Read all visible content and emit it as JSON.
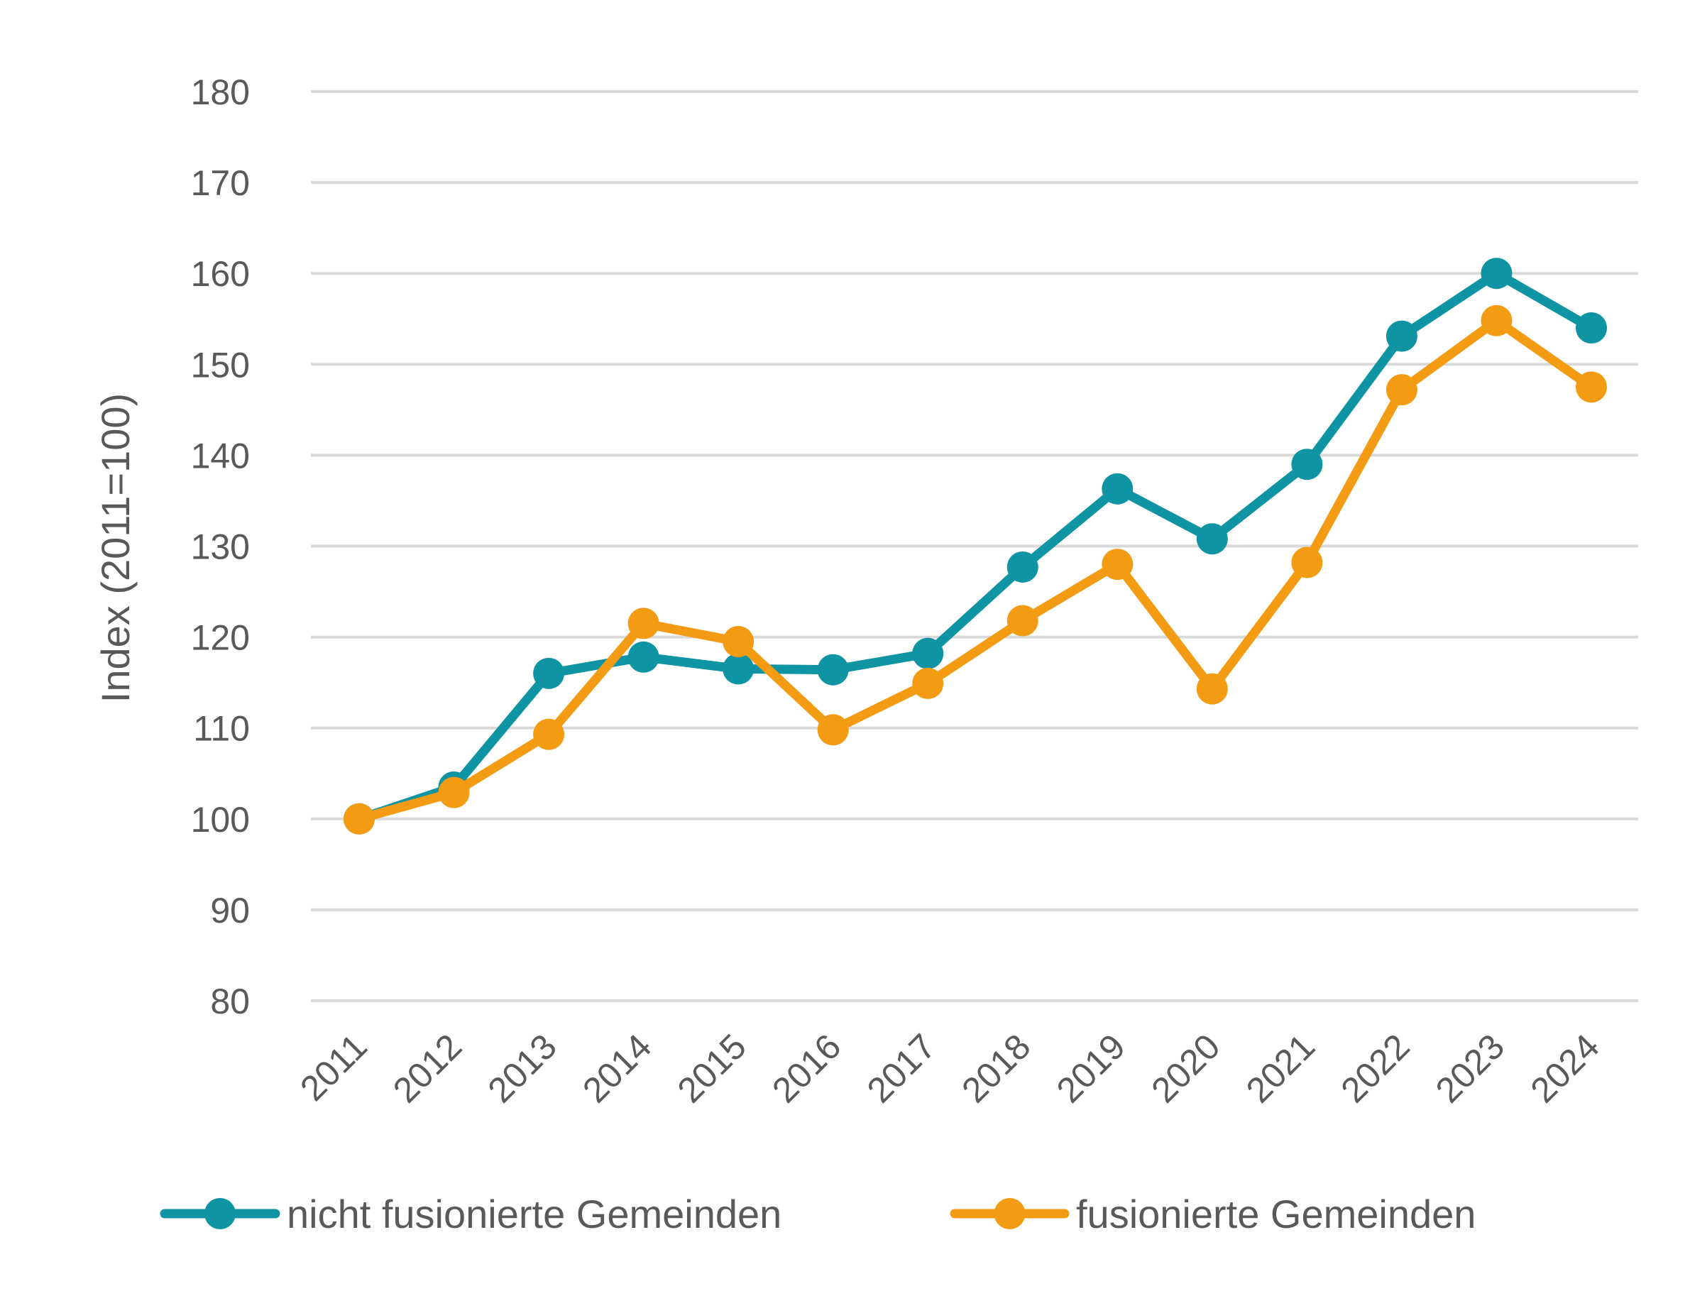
{
  "chart_data": {
    "type": "line",
    "title": "",
    "xlabel": "",
    "ylabel": "Index (2011=100)",
    "ylim": [
      80,
      180
    ],
    "yticks": [
      80,
      90,
      100,
      110,
      120,
      130,
      140,
      150,
      160,
      170,
      180
    ],
    "grid": "horizontal",
    "legend": "bottom",
    "categories": [
      "2011",
      "2012",
      "2013",
      "2014",
      "2015",
      "2016",
      "2017",
      "2018",
      "2019",
      "2020",
      "2021",
      "2022",
      "2023",
      "2024"
    ],
    "series": [
      {
        "name": "nicht fusionierte Gemeinden",
        "color": "#0e94a3",
        "values": [
          100,
          103.5,
          116,
          117.8,
          116.5,
          116.4,
          118.2,
          127.7,
          136.3,
          130.8,
          139,
          153.1,
          160,
          154
        ]
      },
      {
        "name": "fusionierte Gemeinden",
        "color": "#f39b12",
        "values": [
          100,
          102.9,
          109.3,
          121.5,
          119.5,
          109.8,
          114.9,
          121.8,
          128,
          114.3,
          128.2,
          147.2,
          154.8,
          147.5
        ]
      }
    ]
  }
}
